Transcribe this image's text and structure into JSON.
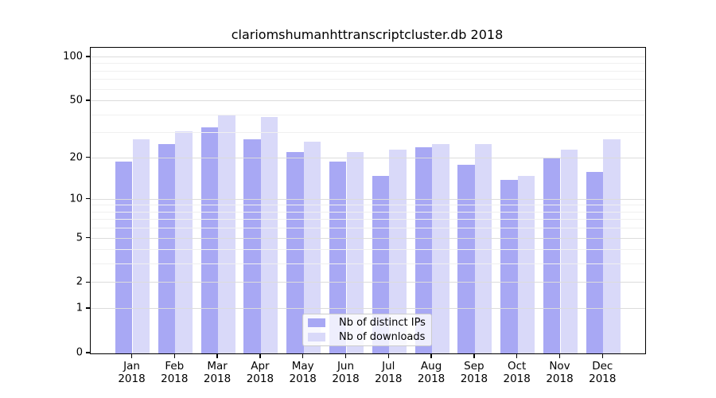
{
  "chart_data": {
    "type": "bar",
    "title": "clariomshumanhttranscriptcluster.db 2018",
    "categories": [
      "Jan 2018",
      "Feb 2018",
      "Mar 2018",
      "Apr 2018",
      "May 2018",
      "Jun 2018",
      "Jul 2018",
      "Aug 2018",
      "Sep 2018",
      "Oct 2018",
      "Nov 2018",
      "Dec 2018"
    ],
    "series": [
      {
        "name": "Nb of distinct IPs",
        "color": "#a8a8f4",
        "values": [
          19,
          25,
          33,
          27,
          22,
          19,
          15,
          24,
          18,
          14,
          20,
          16
        ]
      },
      {
        "name": "Nb of downloads",
        "color": "#d9d9f9",
        "values": [
          27,
          31,
          40,
          39,
          26,
          22,
          23,
          25,
          25,
          15,
          23,
          27
        ]
      }
    ],
    "yscale": "log1p",
    "ylim": [
      0,
      100
    ],
    "yticks": [
      100,
      50,
      20,
      10,
      5,
      2,
      1,
      0
    ],
    "minor_gridlines": [
      3,
      4,
      6,
      7,
      8,
      9,
      30,
      40,
      60,
      70,
      80,
      90
    ],
    "grid": true,
    "legend_position": "lower center"
  },
  "colors": {
    "distinct_ips": "#a8a8f4",
    "downloads": "#d9d9f9",
    "grid_major": "#dcdcdc",
    "grid_minor": "#f0f0f0",
    "spine": "#000000",
    "background": "#ffffff"
  }
}
